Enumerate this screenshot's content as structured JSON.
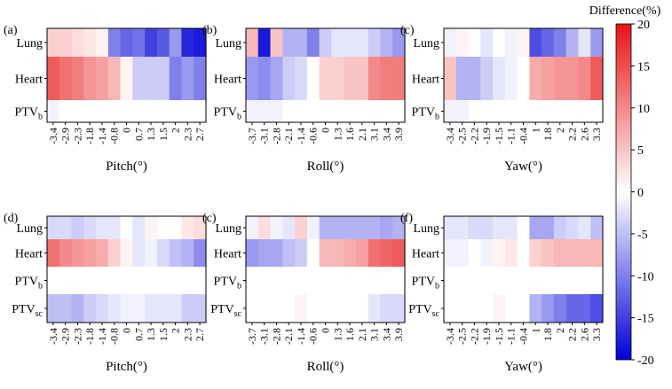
{
  "chart_data": {
    "type": "heatmap",
    "colorbar": {
      "title": "Difference(%)",
      "min": -20,
      "max": 20,
      "ticks": [
        "20",
        "15",
        "10",
        "5",
        "0",
        "-5",
        "-10",
        "-15",
        "-20"
      ]
    },
    "panels": [
      {
        "label": "(a)",
        "xlabel": "Pitch(°)",
        "xticks": [
          "-3.4",
          "-2.9",
          "-2.3",
          "-1.8",
          "-1.4",
          "-0.8",
          "0",
          "0.7",
          "1.3",
          "1.5",
          "2",
          "2.3",
          "2.7"
        ],
        "rows": [
          {
            "label": "Lung",
            "values": [
              4,
              4,
              3,
              2,
              1,
              -10,
              -12,
              -11,
              -15,
              -13,
              -8,
              -17,
              -18
            ]
          },
          {
            "label": "Heart",
            "values": [
              14,
              12,
              11,
              9,
              8,
              6,
              1,
              -4,
              -4,
              -4,
              -10,
              -8,
              -10
            ]
          },
          {
            "label": "PTV",
            "sub": "b",
            "values": [
              -1,
              0,
              0,
              0,
              0,
              0,
              0,
              0,
              0,
              0,
              0,
              0,
              0
            ]
          }
        ]
      },
      {
        "label": "(b)",
        "xlabel": "Roll(°)",
        "xticks": [
          "-3.7",
          "-3.1",
          "-2.8",
          "-2.1",
          "-1.4",
          "-0.6",
          "0",
          "1.3",
          "1.6",
          "2.1",
          "3.1",
          "3.4",
          "3.9"
        ],
        "rows": [
          {
            "label": "Lung",
            "values": [
              6,
              -18,
              5,
              -6,
              -6,
              -10,
              -4,
              -2,
              -2,
              -2,
              -4,
              -6,
              -8
            ]
          },
          {
            "label": "Heart",
            "values": [
              -8,
              -9,
              -7,
              -4,
              -3,
              0,
              4,
              4,
              5,
              5,
              10,
              11,
              11
            ]
          },
          {
            "label": "PTV",
            "sub": "b",
            "values": [
              -1,
              -1,
              -1,
              0,
              0,
              0,
              0,
              0,
              0,
              0,
              0,
              0,
              0
            ]
          }
        ]
      },
      {
        "label": "(c)",
        "xlabel": "Yaw(°)",
        "xticks": [
          "-3.4",
          "-2.5",
          "-2.2",
          "-1.9",
          "-1.5",
          "-1.1",
          "-0.4",
          "1",
          "1.8",
          "2",
          "2.2",
          "2.6",
          "3.3"
        ],
        "rows": [
          {
            "label": "Lung",
            "values": [
              -1,
              1,
              0,
              -2,
              0,
              -1,
              1,
              -14,
              -12,
              -10,
              -6,
              -2,
              -8
            ]
          },
          {
            "label": "Heart",
            "values": [
              5,
              -6,
              -6,
              -4,
              -2,
              -1,
              0,
              7,
              8,
              9,
              9,
              10,
              14
            ]
          },
          {
            "label": "PTV",
            "sub": "b",
            "values": [
              -1,
              -1,
              0,
              0,
              0,
              0,
              0,
              0,
              0,
              0,
              0,
              0,
              0
            ]
          }
        ]
      },
      {
        "label": "(d)",
        "xlabel": "Pitch(°)",
        "xticks": [
          "-3.4",
          "-2.9",
          "-2.3",
          "-1.8",
          "-1.4",
          "-0.8",
          "0",
          "0.7",
          "1.3",
          "1.5",
          "2",
          "2.3",
          "2.7"
        ],
        "rows": [
          {
            "label": "Lung",
            "values": [
              -3,
              -3,
              -4,
              -3,
              -2,
              -2,
              0,
              -2,
              1,
              0,
              0,
              2,
              3
            ]
          },
          {
            "label": "Heart",
            "values": [
              12,
              10,
              9,
              8,
              7,
              4,
              1,
              -2,
              -1,
              -3,
              -5,
              -6,
              -9
            ]
          },
          {
            "label": "PTV",
            "sub": "b",
            "values": [
              0,
              0,
              0,
              0,
              0,
              0,
              0,
              0,
              0,
              0,
              0,
              0,
              0
            ]
          },
          {
            "label": "PTV",
            "sub": "sc",
            "values": [
              -5,
              -5,
              -6,
              -4,
              -3,
              -2,
              -1,
              -1,
              -2,
              -2,
              -2,
              -4,
              -4
            ]
          }
        ]
      },
      {
        "label": "(c)",
        "xlabel": "Roll(°)",
        "xticks": [
          "-3.7",
          "-3.1",
          "-2.8",
          "-2.1",
          "-1.4",
          "-0.6",
          "0",
          "1.3",
          "1.6",
          "2.1",
          "3.1",
          "3.4",
          "3.9"
        ],
        "rows": [
          {
            "label": "Lung",
            "values": [
              -1,
              3,
              -1,
              -2,
              4,
              -1,
              -6,
              -6,
              -6,
              -6,
              -6,
              -7,
              -6
            ]
          },
          {
            "label": "Heart",
            "values": [
              -8,
              -7,
              -7,
              -5,
              -4,
              0,
              6,
              6,
              7,
              8,
              12,
              13,
              14
            ]
          },
          {
            "label": "PTV",
            "sub": "b",
            "values": [
              0,
              0,
              0,
              0,
              0,
              0,
              0,
              0,
              0,
              0,
              0,
              0,
              0
            ]
          },
          {
            "label": "PTV",
            "sub": "sc",
            "values": [
              0,
              0,
              0,
              0,
              1,
              0,
              0,
              0,
              0,
              0,
              -2,
              -3,
              -3
            ]
          }
        ]
      },
      {
        "label": "(f)",
        "xlabel": "Yaw(°)",
        "xticks": [
          "-3.4",
          "-2.5",
          "-2.2",
          "-1.9",
          "-1.5",
          "-1.1",
          "-0.4",
          "1",
          "1.8",
          "2",
          "2.2",
          "2.6",
          "3.3"
        ],
        "rows": [
          {
            "label": "Lung",
            "values": [
              -2,
              -2,
              -3,
              -3,
              -2,
              -2,
              0,
              -7,
              -7,
              -4,
              -3,
              -2,
              -5
            ]
          },
          {
            "label": "Heart",
            "values": [
              -1,
              -1,
              0,
              -1,
              1,
              2,
              0,
              4,
              5,
              6,
              6,
              6,
              6
            ]
          },
          {
            "label": "PTV",
            "sub": "b",
            "values": [
              0,
              0,
              0,
              0,
              0,
              0,
              0,
              0,
              0,
              0,
              0,
              0,
              0
            ]
          },
          {
            "label": "PTV",
            "sub": "sc",
            "values": [
              0,
              0,
              0,
              0,
              1,
              0,
              0,
              -6,
              -8,
              -10,
              -12,
              -12,
              -14
            ]
          }
        ]
      }
    ]
  }
}
